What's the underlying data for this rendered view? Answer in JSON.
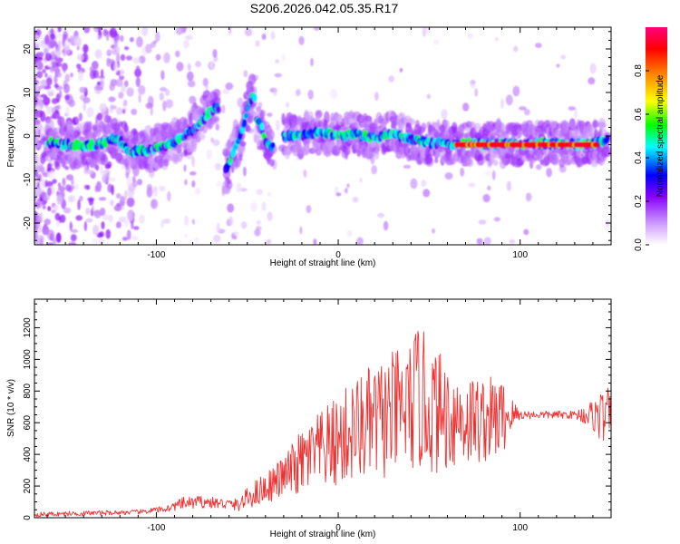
{
  "title": "S206.2026.042.05.35.R17",
  "chart_data": [
    {
      "type": "heatmap",
      "name": "spectrogram",
      "xlabel": "Height of straight line (km)",
      "ylabel": "Frequency (Hz)",
      "xlim": [
        -167,
        150
      ],
      "ylim": [
        -25,
        25
      ],
      "xticks": [
        -100,
        0,
        100
      ],
      "yticks": [
        -20,
        -10,
        0,
        10,
        20
      ],
      "colorbar": {
        "label": "Normalized spectral amplitude",
        "range": [
          0,
          1
        ],
        "ticks": [
          "0.0",
          "0.2",
          "0.4",
          "0.6",
          "0.8"
        ],
        "colors": [
          "#ffffff",
          "#cc99ff",
          "#8800ff",
          "#0000ff",
          "#00ffff",
          "#00ff00",
          "#ffff00",
          "#ff8800",
          "#ff0000",
          "#ff0080"
        ]
      },
      "ridges": [
        {
          "x": [
            -160,
            -150,
            -140,
            -130,
            -122,
            -115,
            -105,
            -95,
            -88,
            -82,
            -76,
            -72,
            -68,
            -66
          ],
          "y": [
            -1.5,
            -2.0,
            -2.2,
            -1.8,
            -0.3,
            -3.5,
            -3.2,
            -2.2,
            -1.0,
            1.0,
            3.0,
            5.0,
            6.2,
            6.5
          ]
        },
        {
          "x": [
            -62,
            -58,
            -55,
            -52,
            -50,
            -48,
            -46
          ],
          "y": [
            -8.0,
            -4.0,
            -1.0,
            2.0,
            6.0,
            8.5,
            9.0
          ]
        },
        {
          "x": [
            -45,
            -42,
            -40,
            -38,
            -36
          ],
          "y": [
            4.0,
            2.0,
            -1.0,
            -2.0,
            -2.5
          ]
        },
        {
          "x": [
            -30,
            -20,
            -10,
            0,
            10,
            20,
            30,
            40,
            50,
            60,
            80,
            100,
            120,
            140,
            148
          ],
          "y": [
            0.0,
            0.2,
            1.0,
            0.0,
            0.5,
            -0.5,
            0.5,
            -0.8,
            -1.5,
            -1.8,
            -1.8,
            -1.8,
            -1.8,
            -1.8,
            -1.0
          ]
        }
      ],
      "peak_band": {
        "x": [
          65,
          142
        ],
        "y": -2.0,
        "amplitude": 0.95
      }
    },
    {
      "type": "line",
      "name": "snr",
      "xlabel": "Height of straight line (km)",
      "ylabel": "SNR (10 * v/v)",
      "xlim": [
        -167,
        150
      ],
      "ylim": [
        0,
        1380
      ],
      "xticks": [
        -100,
        0,
        100
      ],
      "yticks": [
        0,
        200,
        400,
        600,
        800,
        1000,
        1200
      ],
      "color": "#ee3333",
      "series": [
        {
          "name": "SNR",
          "x": [
            -167,
            -150,
            -130,
            -110,
            -95,
            -85,
            -75,
            -65,
            -55,
            -48,
            -40,
            -30,
            -22,
            -15,
            -8,
            0,
            10,
            20,
            30,
            40,
            44,
            50,
            60,
            70,
            80,
            90,
            95,
            100,
            110,
            120,
            130,
            140,
            145,
            150
          ],
          "mean": [
            20,
            25,
            30,
            35,
            55,
            90,
            100,
            90,
            80,
            140,
            190,
            260,
            330,
            390,
            430,
            480,
            560,
            600,
            650,
            700,
            760,
            690,
            650,
            620,
            620,
            630,
            650,
            650,
            650,
            650,
            650,
            650,
            640,
            640
          ],
          "amp": [
            15,
            15,
            15,
            15,
            20,
            40,
            40,
            35,
            40,
            80,
            100,
            130,
            200,
            230,
            260,
            300,
            340,
            380,
            400,
            420,
            480,
            420,
            360,
            300,
            280,
            260,
            120,
            30,
            25,
            25,
            25,
            100,
            180,
            180
          ]
        }
      ]
    }
  ]
}
